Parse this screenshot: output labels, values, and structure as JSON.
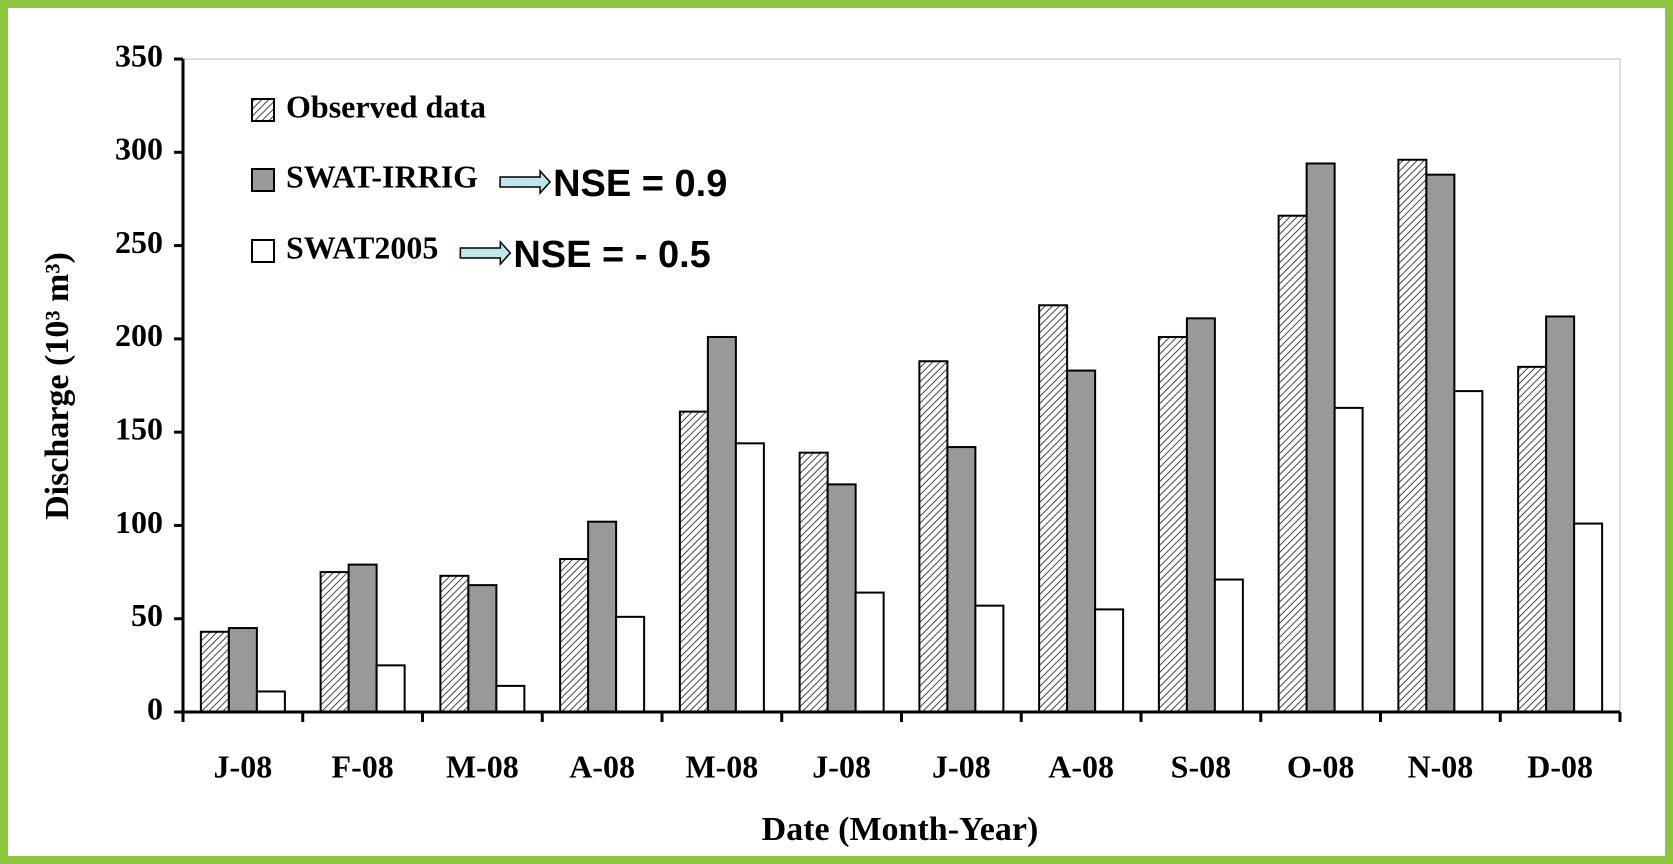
{
  "chart_data": {
    "type": "bar",
    "x_label": "Date (Month-Year)",
    "y_label": "Discharge (10³ m³)",
    "categories": [
      "J-08",
      "F-08",
      "M-08",
      "A-08",
      "M-08",
      "J-08",
      "J-08",
      "A-08",
      "S-08",
      "O-08",
      "N-08",
      "D-08"
    ],
    "series": [
      {
        "name": "Observed data",
        "color": "#444444",
        "hatch": true,
        "values": [
          43,
          75,
          73,
          82,
          161,
          139,
          188,
          218,
          201,
          266,
          296,
          185
        ]
      },
      {
        "name": "SWAT-IRRIG",
        "color": "#999999",
        "hatch": false,
        "values": [
          45,
          79,
          68,
          102,
          201,
          122,
          142,
          183,
          211,
          294,
          288,
          212
        ]
      },
      {
        "name": "SWAT2005",
        "color": "#ffffff",
        "hatch": false,
        "values": [
          11,
          25,
          14,
          51,
          144,
          64,
          57,
          55,
          71,
          163,
          172,
          101
        ]
      }
    ],
    "annotations": [
      "NSE = 0.9",
      "NSE = - 0.5"
    ],
    "ylim": [
      0,
      350
    ],
    "yticks": [
      0,
      50,
      100,
      150,
      200,
      250,
      300,
      350
    ],
    "grid": false
  }
}
